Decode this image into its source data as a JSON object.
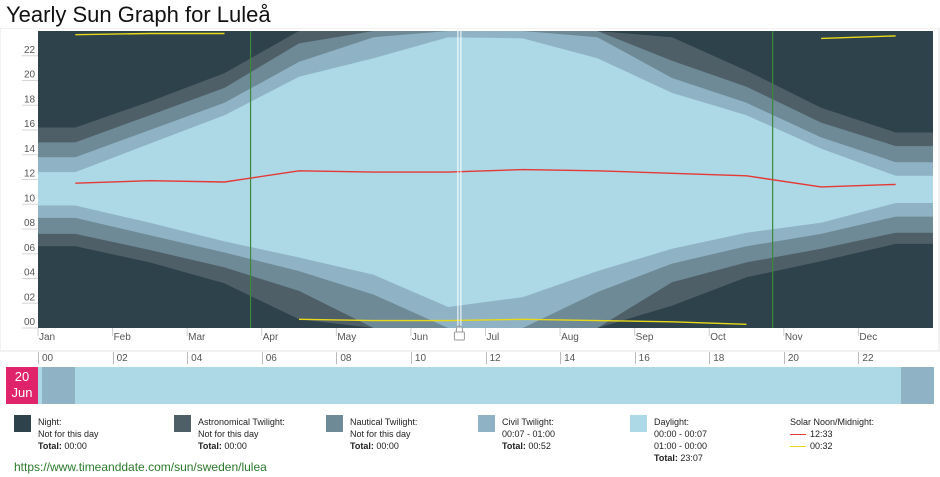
{
  "title": "Yearly Sun Graph for Luleå",
  "url": "https://www.timeanddate.com/sun/sweden/lulea",
  "colors": {
    "night": "#2e424c",
    "astronomical": "#4e5f67",
    "nautical": "#6e8a97",
    "civil": "#8fb3c4",
    "daylight": "#add8e6",
    "noon": "#e53935",
    "midnight": "#e8d81a",
    "dst": "#3a8a3a",
    "date": "#e0246c"
  },
  "chart_data": {
    "type": "area",
    "title": "Yearly Sun Graph for Luleå",
    "months": [
      "Jan",
      "Feb",
      "Mar",
      "Apr",
      "May",
      "Jun",
      "Jul",
      "Aug",
      "Sep",
      "Oct",
      "Nov",
      "Dec"
    ],
    "y_ticks": [
      "00",
      "02",
      "04",
      "06",
      "08",
      "10",
      "12",
      "14",
      "16",
      "18",
      "20",
      "22"
    ],
    "ylim": [
      0,
      24
    ],
    "series_meaning": "hours of day per month (local time)",
    "daylight": {
      "start": [
        9.9,
        8.5,
        7.0,
        5.7,
        4.3,
        1.7,
        2.5,
        4.6,
        6.4,
        7.7,
        8.5,
        10.1
      ],
      "end": [
        12.6,
        14.9,
        17.2,
        20.3,
        21.8,
        23.5,
        23.4,
        21.8,
        19.0,
        17.2,
        14.5,
        12.3
      ]
    },
    "civil": {
      "start": [
        8.9,
        7.5,
        6.1,
        4.6,
        2.7,
        0.0,
        0.0,
        2.9,
        5.2,
        6.6,
        7.6,
        9.0
      ],
      "end": [
        13.8,
        16.0,
        18.2,
        21.5,
        23.5,
        24.0,
        24.0,
        23.5,
        20.2,
        18.2,
        15.4,
        13.4
      ]
    },
    "nautical": {
      "start": [
        7.6,
        6.3,
        4.9,
        3.0,
        0.0,
        0.0,
        0.0,
        0.0,
        3.7,
        5.3,
        6.4,
        7.7
      ],
      "end": [
        15.0,
        17.2,
        19.4,
        23.0,
        24.0,
        24.0,
        24.0,
        24.0,
        21.6,
        19.5,
        16.6,
        14.7
      ]
    },
    "astronomical": {
      "start": [
        6.6,
        5.3,
        3.6,
        0.7,
        0.0,
        0.0,
        0.0,
        0.0,
        1.8,
        4.1,
        5.4,
        6.8
      ],
      "end": [
        16.2,
        18.3,
        20.6,
        24.0,
        24.0,
        24.0,
        24.0,
        24.0,
        23.5,
        20.8,
        17.8,
        15.8
      ]
    },
    "solar_noon": [
      11.7,
      11.9,
      11.8,
      12.7,
      12.6,
      12.6,
      12.8,
      12.7,
      12.5,
      12.3,
      11.4,
      11.6
    ],
    "solar_midnight": [
      23.7,
      23.8,
      23.8,
      0.7,
      0.6,
      0.6,
      0.7,
      0.6,
      0.5,
      0.3,
      23.4,
      23.6
    ],
    "dst_periods": [
      [
        "Mar",
        "Oct"
      ]
    ],
    "selected_date_marker": "Jun"
  },
  "hour_scale": [
    "00",
    "02",
    "04",
    "06",
    "08",
    "10",
    "12",
    "14",
    "16",
    "18",
    "20",
    "22"
  ],
  "day": {
    "date_day": "20",
    "date_month": "Jun",
    "segments": [
      {
        "kind": "civil",
        "from": 0.12,
        "to": 1.0
      },
      {
        "kind": "daylight",
        "from": 1.0,
        "to": 23.12
      },
      {
        "kind": "civil",
        "from": 23.12,
        "to": 24.0
      }
    ]
  },
  "legend": {
    "night": {
      "label": "Night:",
      "line1": "Not for this day",
      "total_label": "Total:",
      "total": "00:00"
    },
    "astronomical": {
      "label": "Astronomical Twilight:",
      "line1": "Not for this day",
      "total_label": "Total:",
      "total": "00:00"
    },
    "nautical": {
      "label": "Nautical Twilight:",
      "line1": "Not for this day",
      "total_label": "Total:",
      "total": "00:00"
    },
    "civil": {
      "label": "Civil Twilight:",
      "line1": "00:07 - 01:00",
      "total_label": "Total:",
      "total": "00:52"
    },
    "daylight": {
      "label": "Daylight:",
      "line1": "00:00 - 00:07",
      "line2": "01:00 - 00:00",
      "total_label": "Total:",
      "total": "23:07"
    },
    "solar": {
      "label": "Solar Noon/Midnight:",
      "noon": "12:33",
      "midnight": "00:32"
    }
  }
}
